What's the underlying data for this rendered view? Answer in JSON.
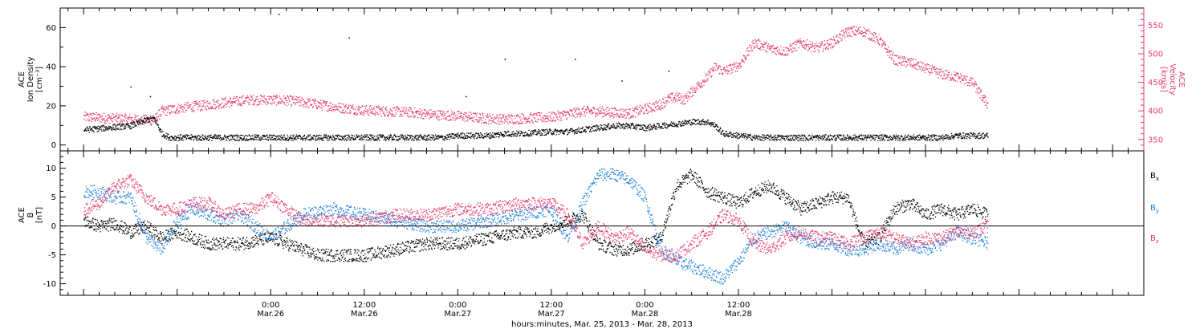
{
  "chart_data": [
    {
      "type": "scatter",
      "panel": "plasma",
      "left_axis": {
        "label_lines": [
          "ACE",
          "Ion Density",
          "[cm⁻³]"
        ],
        "ylim": [
          -3,
          70
        ],
        "ticks": [
          0,
          20,
          40,
          60
        ]
      },
      "right_axis": {
        "label_lines": [
          "ACE",
          "Velocity",
          "[km/s]"
        ],
        "ylim": [
          330,
          580
        ],
        "ticks": [
          350,
          400,
          450,
          500,
          550
        ],
        "color": "#e8396a"
      },
      "series": [
        {
          "color": "#000000",
          "axis": "left",
          "x": [
            -24,
            -21,
            -18,
            -16,
            -15,
            -14,
            -13,
            -12,
            -8,
            -4,
            0,
            4,
            8,
            12,
            16,
            20,
            22,
            24,
            28,
            30,
            32,
            36,
            38,
            40,
            42,
            44,
            46,
            48,
            50,
            52,
            54,
            55,
            56,
            57,
            58,
            60,
            62,
            64,
            66,
            68,
            72,
            76,
            80,
            84,
            86,
            88,
            90,
            92
          ],
          "y": [
            8,
            9,
            10,
            13,
            14,
            6,
            4,
            4,
            4,
            4,
            4,
            4,
            4,
            4,
            4,
            4,
            4,
            5,
            5,
            6,
            6,
            7,
            7,
            8,
            9,
            10,
            10,
            9,
            10,
            11,
            12,
            12,
            12,
            10,
            6,
            5,
            4,
            4,
            4,
            4,
            4,
            4,
            4,
            4,
            4,
            5,
            5,
            5
          ]
        },
        {
          "color": "#e8396a",
          "axis": "right",
          "x": [
            -24,
            -21,
            -18,
            -15,
            -14,
            -12,
            -9,
            -6,
            -3,
            0,
            3,
            6,
            9,
            12,
            15,
            18,
            21,
            24,
            27,
            30,
            33,
            36,
            38,
            40,
            42,
            44,
            46,
            48,
            50,
            51,
            52,
            53,
            54,
            55,
            56,
            57,
            58,
            60,
            61,
            62,
            64,
            66,
            68,
            70,
            72,
            74,
            76,
            78,
            80,
            82,
            84,
            86,
            88,
            90,
            91,
            92
          ],
          "y": [
            390,
            388,
            386,
            384,
            400,
            405,
            410,
            415,
            420,
            420,
            418,
            412,
            406,
            402,
            400,
            398,
            394,
            392,
            388,
            386,
            388,
            390,
            395,
            400,
            400,
            398,
            396,
            404,
            412,
            422,
            425,
            420,
            435,
            448,
            460,
            478,
            470,
            480,
            500,
            520,
            510,
            505,
            520,
            510,
            520,
            540,
            540,
            525,
            490,
            485,
            475,
            465,
            460,
            450,
            430,
            410
          ]
        }
      ],
      "scatter_points": [
        {
          "x": 1,
          "y": 67
        },
        {
          "x": -18,
          "y": 30
        },
        {
          "x": -15.5,
          "y": 25
        },
        {
          "x": 25,
          "y": 25
        },
        {
          "x": 30,
          "y": 44
        },
        {
          "x": 39,
          "y": 44
        },
        {
          "x": 45,
          "y": 33
        },
        {
          "x": 51,
          "y": 38
        },
        {
          "x": 10,
          "y": 55
        }
      ]
    },
    {
      "type": "scatter",
      "panel": "magnetic-field",
      "left_axis": {
        "label_lines": [
          "ACE",
          "B",
          "[nT]"
        ],
        "ylim": [
          -12,
          13
        ],
        "ticks": [
          -10,
          -5,
          0,
          5,
          10
        ]
      },
      "zero_line": true,
      "series": [
        {
          "legend_main": "B",
          "legend_sub": "x",
          "color": "#000000",
          "x": [
            -24,
            -22,
            -20,
            -18,
            -16,
            -14,
            -12,
            -10,
            -8,
            -4,
            0,
            4,
            6,
            8,
            12,
            16,
            20,
            24,
            28,
            32,
            34,
            36,
            38,
            40,
            42,
            44,
            46,
            48,
            50,
            52,
            54,
            56,
            58,
            60,
            62,
            64,
            66,
            68,
            70,
            72,
            74,
            76,
            78,
            80,
            82,
            84,
            86,
            88,
            90,
            92
          ],
          "y": [
            1,
            0,
            0.5,
            -1,
            0,
            -2,
            -1,
            -2,
            -3,
            -3,
            -2,
            -4,
            -5,
            -5,
            -5,
            -4,
            -3,
            -3,
            -2,
            -1,
            -1,
            0,
            1,
            2,
            -3,
            -4,
            -4,
            -3,
            -2,
            7,
            9,
            6,
            5,
            4,
            6,
            7,
            5,
            3,
            4,
            5,
            5,
            -3,
            -2,
            3,
            4,
            2,
            3,
            2,
            3,
            2
          ]
        },
        {
          "legend_main": "B",
          "legend_sub": "y",
          "color": "#1e7fdc",
          "x": [
            -24,
            -22,
            -20,
            -18,
            -16,
            -14,
            -12,
            -10,
            -8,
            -6,
            -4,
            -2,
            0,
            4,
            8,
            12,
            16,
            20,
            24,
            28,
            32,
            36,
            38,
            40,
            42,
            44,
            46,
            48,
            50,
            52,
            54,
            56,
            58,
            60,
            62,
            64,
            66,
            68,
            70,
            72,
            74,
            76,
            78,
            80,
            82,
            84,
            86,
            88,
            90,
            92
          ],
          "y": [
            6,
            6,
            5,
            5,
            -2,
            -4,
            1,
            3,
            2,
            1,
            2,
            0,
            -2,
            2,
            3,
            2,
            1,
            0,
            0,
            1,
            2,
            3,
            -2,
            4,
            9,
            9,
            8,
            5,
            -4,
            -6,
            -7,
            -8,
            -9,
            -6,
            -2,
            -1,
            0,
            -2,
            -3,
            -3,
            -4,
            -4,
            -3,
            -4,
            -3,
            -4,
            -3,
            -1,
            -2,
            -3
          ]
        },
        {
          "legend_main": "B",
          "legend_sub": "z",
          "color": "#e8396a",
          "x": [
            -24,
            -22,
            -20,
            -18,
            -16,
            -14,
            -12,
            -10,
            -8,
            -6,
            -4,
            -2,
            0,
            2,
            4,
            8,
            12,
            16,
            20,
            24,
            28,
            32,
            36,
            38,
            40,
            42,
            44,
            46,
            48,
            50,
            52,
            54,
            56,
            58,
            60,
            62,
            64,
            66,
            68,
            70,
            72,
            74,
            76,
            78,
            80,
            82,
            84,
            86,
            88,
            90,
            92
          ],
          "y": [
            3,
            4,
            7,
            8,
            5,
            3,
            3,
            4,
            4,
            2,
            3,
            3,
            5,
            3,
            1,
            1,
            1,
            2,
            2,
            3,
            3,
            4,
            4,
            2,
            -3,
            0,
            -2,
            -1,
            -4,
            -5,
            -5,
            -3,
            -1,
            2,
            1,
            -3,
            -4,
            -2,
            -1,
            -2,
            -2,
            -3,
            -2,
            -1,
            -2,
            -3,
            -2,
            -2,
            -1,
            -1,
            0
          ]
        }
      ]
    }
  ],
  "x_axis": {
    "range_hours": [
      -27,
      112
    ],
    "ticks": [
      {
        "hour": 0,
        "time": "0:00",
        "date": "Mar.26"
      },
      {
        "hour": 12,
        "time": "12:00",
        "date": "Mar.26"
      },
      {
        "hour": 24,
        "time": "0:00",
        "date": "Mar.27"
      },
      {
        "hour": 36,
        "time": "12:00",
        "date": "Mar.27"
      },
      {
        "hour": 48,
        "time": "0:00",
        "date": "Mar.28"
      },
      {
        "hour": 60,
        "time": "12:00",
        "date": "Mar.28"
      }
    ],
    "label": "hours:minutes, Mar. 25, 2013 - Mar. 28, 2013"
  },
  "colors": {
    "black": "#000000",
    "blue": "#1e7fdc",
    "pink": "#e8396a"
  }
}
